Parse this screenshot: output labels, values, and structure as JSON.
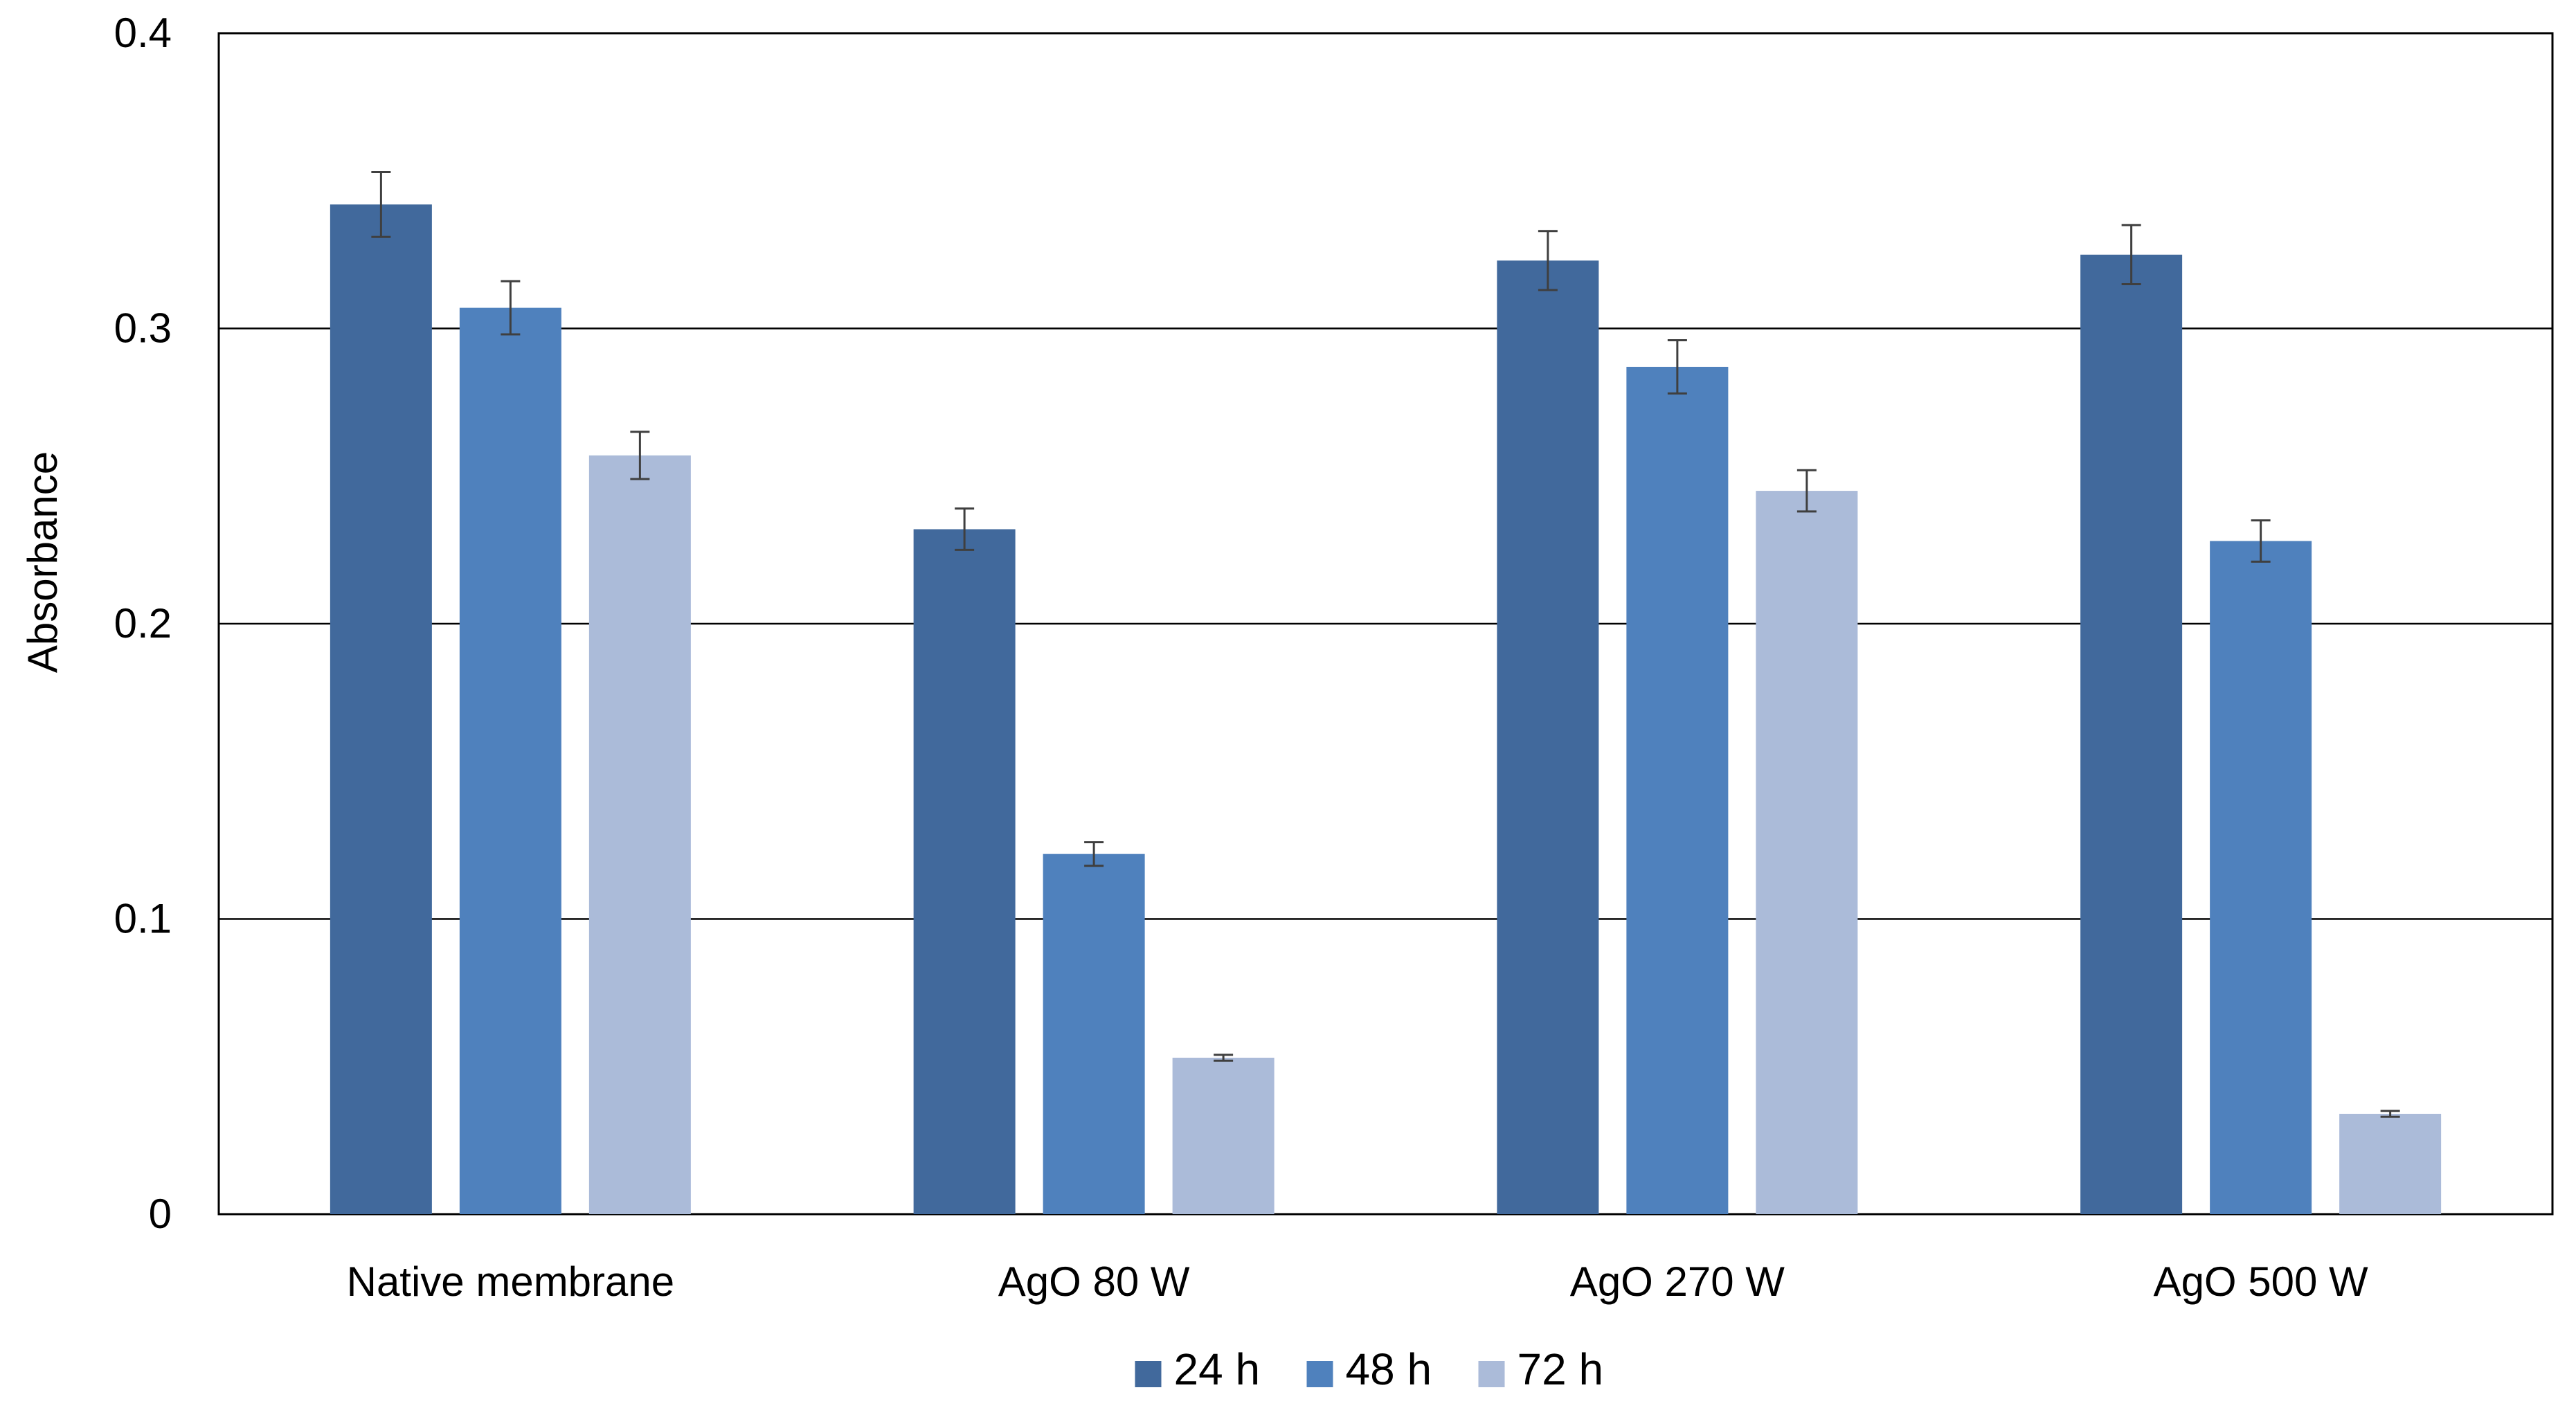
{
  "chart_data": {
    "type": "bar",
    "title": "",
    "xlabel": "",
    "ylabel": "Absorbance",
    "ylim": [
      0,
      0.4
    ],
    "yticks": [
      {
        "value": 0,
        "label": "0"
      },
      {
        "value": 0.1,
        "label": "0.1"
      },
      {
        "value": 0.2,
        "label": "0.2"
      },
      {
        "value": 0.3,
        "label": "0.3"
      },
      {
        "value": 0.4,
        "label": "0.4"
      }
    ],
    "grid": true,
    "legend_position": "bottom",
    "categories": [
      "Native membrane",
      "AgO 80 W",
      "AgO 270 W",
      "AgO 500 W"
    ],
    "series": [
      {
        "name": "24 h",
        "color": "#41699C",
        "values": [
          0.342,
          0.232,
          0.323,
          0.325
        ],
        "errors": [
          0.011,
          0.007,
          0.01,
          0.01
        ]
      },
      {
        "name": "48 h",
        "color": "#4F81BD",
        "values": [
          0.307,
          0.122,
          0.287,
          0.228
        ],
        "errors": [
          0.009,
          0.004,
          0.009,
          0.007
        ]
      },
      {
        "name": "72 h",
        "color": "#ABBBD9",
        "values": [
          0.257,
          0.053,
          0.245,
          0.034
        ],
        "errors": [
          0.008,
          0.001,
          0.007,
          0.001
        ]
      }
    ]
  }
}
